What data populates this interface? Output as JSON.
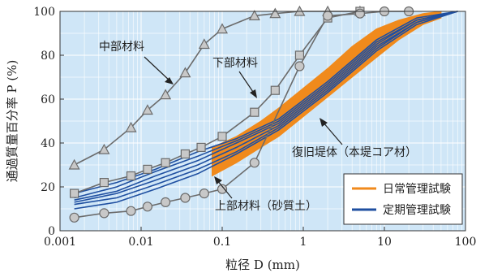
{
  "chart_data": {
    "type": "line",
    "xlabel": "粒径 D (mm)",
    "ylabel": "通過質量百分率 P (%)",
    "x_scale": "log",
    "xlim": [
      0.001,
      100
    ],
    "ylim": [
      0,
      100
    ],
    "x_ticks": [
      0.001,
      0.01,
      0.1,
      1,
      10,
      100
    ],
    "x_tick_labels": [
      "0.001",
      "0.01",
      "0.1",
      "1",
      "10",
      "100"
    ],
    "y_ticks": [
      0,
      20,
      40,
      60,
      80,
      100
    ],
    "y_tick_labels": [
      "0",
      "20",
      "40",
      "60",
      "80",
      "100"
    ],
    "grid": true,
    "legend": {
      "placement": "bottom-right",
      "entries": [
        {
          "label": "日常管理試験",
          "color": "#f08a1c"
        },
        {
          "label": "定期管理試験",
          "color": "#1f4fa0"
        }
      ]
    },
    "annotations": {
      "middle": "中部材料",
      "lower": "下部材料",
      "restored": "復旧堤体（本堤コア材）",
      "upper": "上部材料（砂質土）"
    },
    "colors": {
      "background": "#cfe6f7",
      "grid": "#ffffff",
      "daily": "#f08a1c",
      "periodic": "#1f4fa0",
      "marker_line": "#6b6b6b",
      "marker_fill": "#c8c8c8"
    },
    "series": [
      {
        "name": "中部材料",
        "marker": "triangle",
        "x": [
          0.0015,
          0.0035,
          0.0075,
          0.012,
          0.02,
          0.035,
          0.06,
          0.1,
          0.25,
          0.45,
          0.9,
          2,
          5
        ],
        "y": [
          30,
          37,
          47,
          55,
          62,
          72,
          85,
          92,
          98,
          99,
          100,
          100,
          100
        ]
      },
      {
        "name": "下部材料",
        "marker": "square",
        "x": [
          0.0015,
          0.0035,
          0.0075,
          0.012,
          0.02,
          0.035,
          0.055,
          0.1,
          0.25,
          0.45,
          0.9,
          2,
          5
        ],
        "y": [
          17,
          22,
          25,
          28,
          31,
          35,
          38,
          43,
          54,
          64,
          80,
          97,
          100
        ]
      },
      {
        "name": "上部材料（砂質土）",
        "marker": "circle",
        "x": [
          0.0015,
          0.0035,
          0.0075,
          0.012,
          0.02,
          0.035,
          0.06,
          0.1,
          0.25,
          0.9,
          2,
          5,
          10,
          20
        ],
        "y": [
          6,
          8,
          9,
          11,
          13,
          15,
          17,
          19,
          31,
          75,
          98,
          99,
          100,
          100
        ]
      },
      {
        "name": "定期管理試験",
        "marker": "none",
        "lines": [
          {
            "x": [
              0.0015,
              0.005,
              0.015,
              0.05,
              0.15,
              0.5,
              2,
              8,
              25,
              80
            ],
            "y": [
              17,
              22,
              28,
              36,
              42,
              51,
              68,
              87,
              97,
              100
            ]
          },
          {
            "x": [
              0.0015,
              0.005,
              0.015,
              0.05,
              0.15,
              0.5,
              2,
              8,
              25,
              80
            ],
            "y": [
              15,
              20,
              27,
              34,
              41,
              50,
              67,
              86,
              96,
              100
            ]
          },
          {
            "x": [
              0.0015,
              0.005,
              0.015,
              0.05,
              0.15,
              0.5,
              2,
              8,
              25,
              80
            ],
            "y": [
              14,
              18,
              25,
              32,
              40,
              49,
              66,
              85,
              96,
              100
            ]
          },
          {
            "x": [
              0.0015,
              0.005,
              0.015,
              0.05,
              0.15,
              0.5,
              2,
              8,
              25,
              80
            ],
            "y": [
              13,
              17,
              23,
              30,
              38,
              48,
              65,
              84,
              95,
              100
            ]
          },
          {
            "x": [
              0.0015,
              0.005,
              0.015,
              0.05,
              0.15,
              0.5,
              2,
              8,
              25,
              80
            ],
            "y": [
              12,
              15,
              21,
              28,
              36,
              47,
              64,
              83,
              95,
              100
            ]
          },
          {
            "x": [
              0.0015,
              0.005,
              0.015,
              0.05,
              0.15,
              0.5,
              2,
              8,
              25,
              80
            ],
            "y": [
              10,
              13,
              19,
              26,
              35,
              46,
              63,
              82,
              94,
              100
            ]
          }
        ]
      },
      {
        "name": "日常管理試験",
        "marker": "none",
        "band": {
          "x": [
            0.075,
            0.15,
            0.3,
            0.5,
            1,
            2,
            4,
            8,
            15,
            30,
            50
          ],
          "upper": [
            38,
            43,
            50,
            56,
            65,
            74,
            84,
            92,
            96,
            99,
            100
          ],
          "lower": [
            25,
            31,
            38,
            43,
            52,
            61,
            70,
            79,
            87,
            94,
            97
          ]
        }
      }
    ]
  }
}
